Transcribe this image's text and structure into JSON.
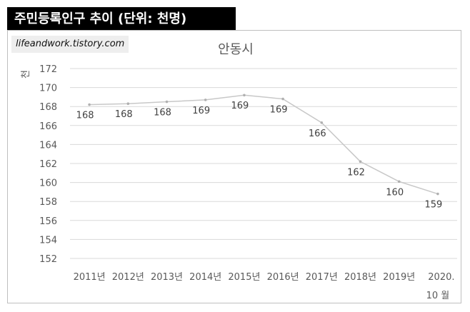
{
  "banner": {
    "title": "주민등록인구 추이 (단위: 천명)"
  },
  "source": {
    "text": "lifeandwork.tistory.com"
  },
  "chart_data": {
    "type": "line",
    "title": "안동시",
    "ylabel": "천",
    "xlabel": "",
    "ylim": [
      152,
      172
    ],
    "yticks": [
      152,
      154,
      156,
      158,
      160,
      162,
      164,
      166,
      168,
      170,
      172
    ],
    "grid": true,
    "categories": [
      "2011년",
      "2012년",
      "2013년",
      "2014년",
      "2015년",
      "2016년",
      "2017년",
      "2018년",
      "2019년",
      "2020. 10 월"
    ],
    "values": [
      168.2,
      168.3,
      168.5,
      168.7,
      169.2,
      168.8,
      166.3,
      162.2,
      160.1,
      158.8
    ],
    "data_labels": [
      "168",
      "168",
      "168",
      "169",
      "169",
      "169",
      "166",
      "162",
      "160",
      "159"
    ],
    "line_color": "#c8c8c8",
    "grid_color": "#d9d9d9"
  }
}
